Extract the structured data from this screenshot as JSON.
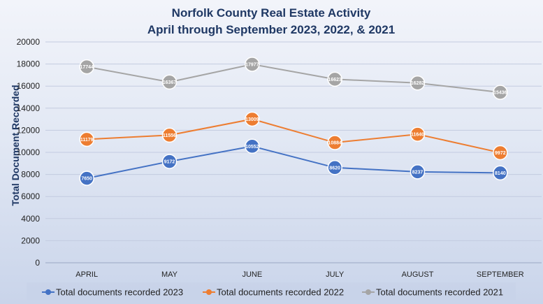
{
  "chart_data": {
    "type": "line",
    "title_line1": "Norfolk County Real Estate Activity",
    "title_line2": "April through September 2023, 2022, & 2021",
    "xlabel": "",
    "ylabel": "Total Document Recorded",
    "ylim": [
      0,
      20000
    ],
    "yticks": [
      0,
      2000,
      4000,
      6000,
      8000,
      10000,
      12000,
      14000,
      16000,
      18000,
      20000
    ],
    "grid": true,
    "legend_position": "bottom",
    "categories": [
      "APRIL",
      "MAY",
      "JUNE",
      "JULY",
      "AUGUST",
      "SEPTEMBER"
    ],
    "series": [
      {
        "name": "Total documents recorded 2023",
        "color": "#4472c4",
        "values": [
          7650,
          9172,
          10552,
          8620,
          8237,
          8140
        ],
        "labels": [
          "7650",
          "9172",
          "10552",
          "8620",
          "8237",
          "8140"
        ]
      },
      {
        "name": "Total documents recorded 2022",
        "color": "#ed7d31",
        "values": [
          11179,
          11556,
          13009,
          10884,
          11640,
          9972
        ],
        "labels": [
          "11179",
          "11556",
          "13009",
          "10884",
          "11640",
          "9972"
        ]
      },
      {
        "name": "Total documents recorded 2021",
        "color": "#a5a5a5",
        "values": [
          17744,
          16367,
          17977,
          16623,
          16282,
          15436
        ],
        "labels": [
          "17744",
          "16367",
          "17977",
          "16623",
          "16282",
          "15436"
        ]
      }
    ]
  }
}
